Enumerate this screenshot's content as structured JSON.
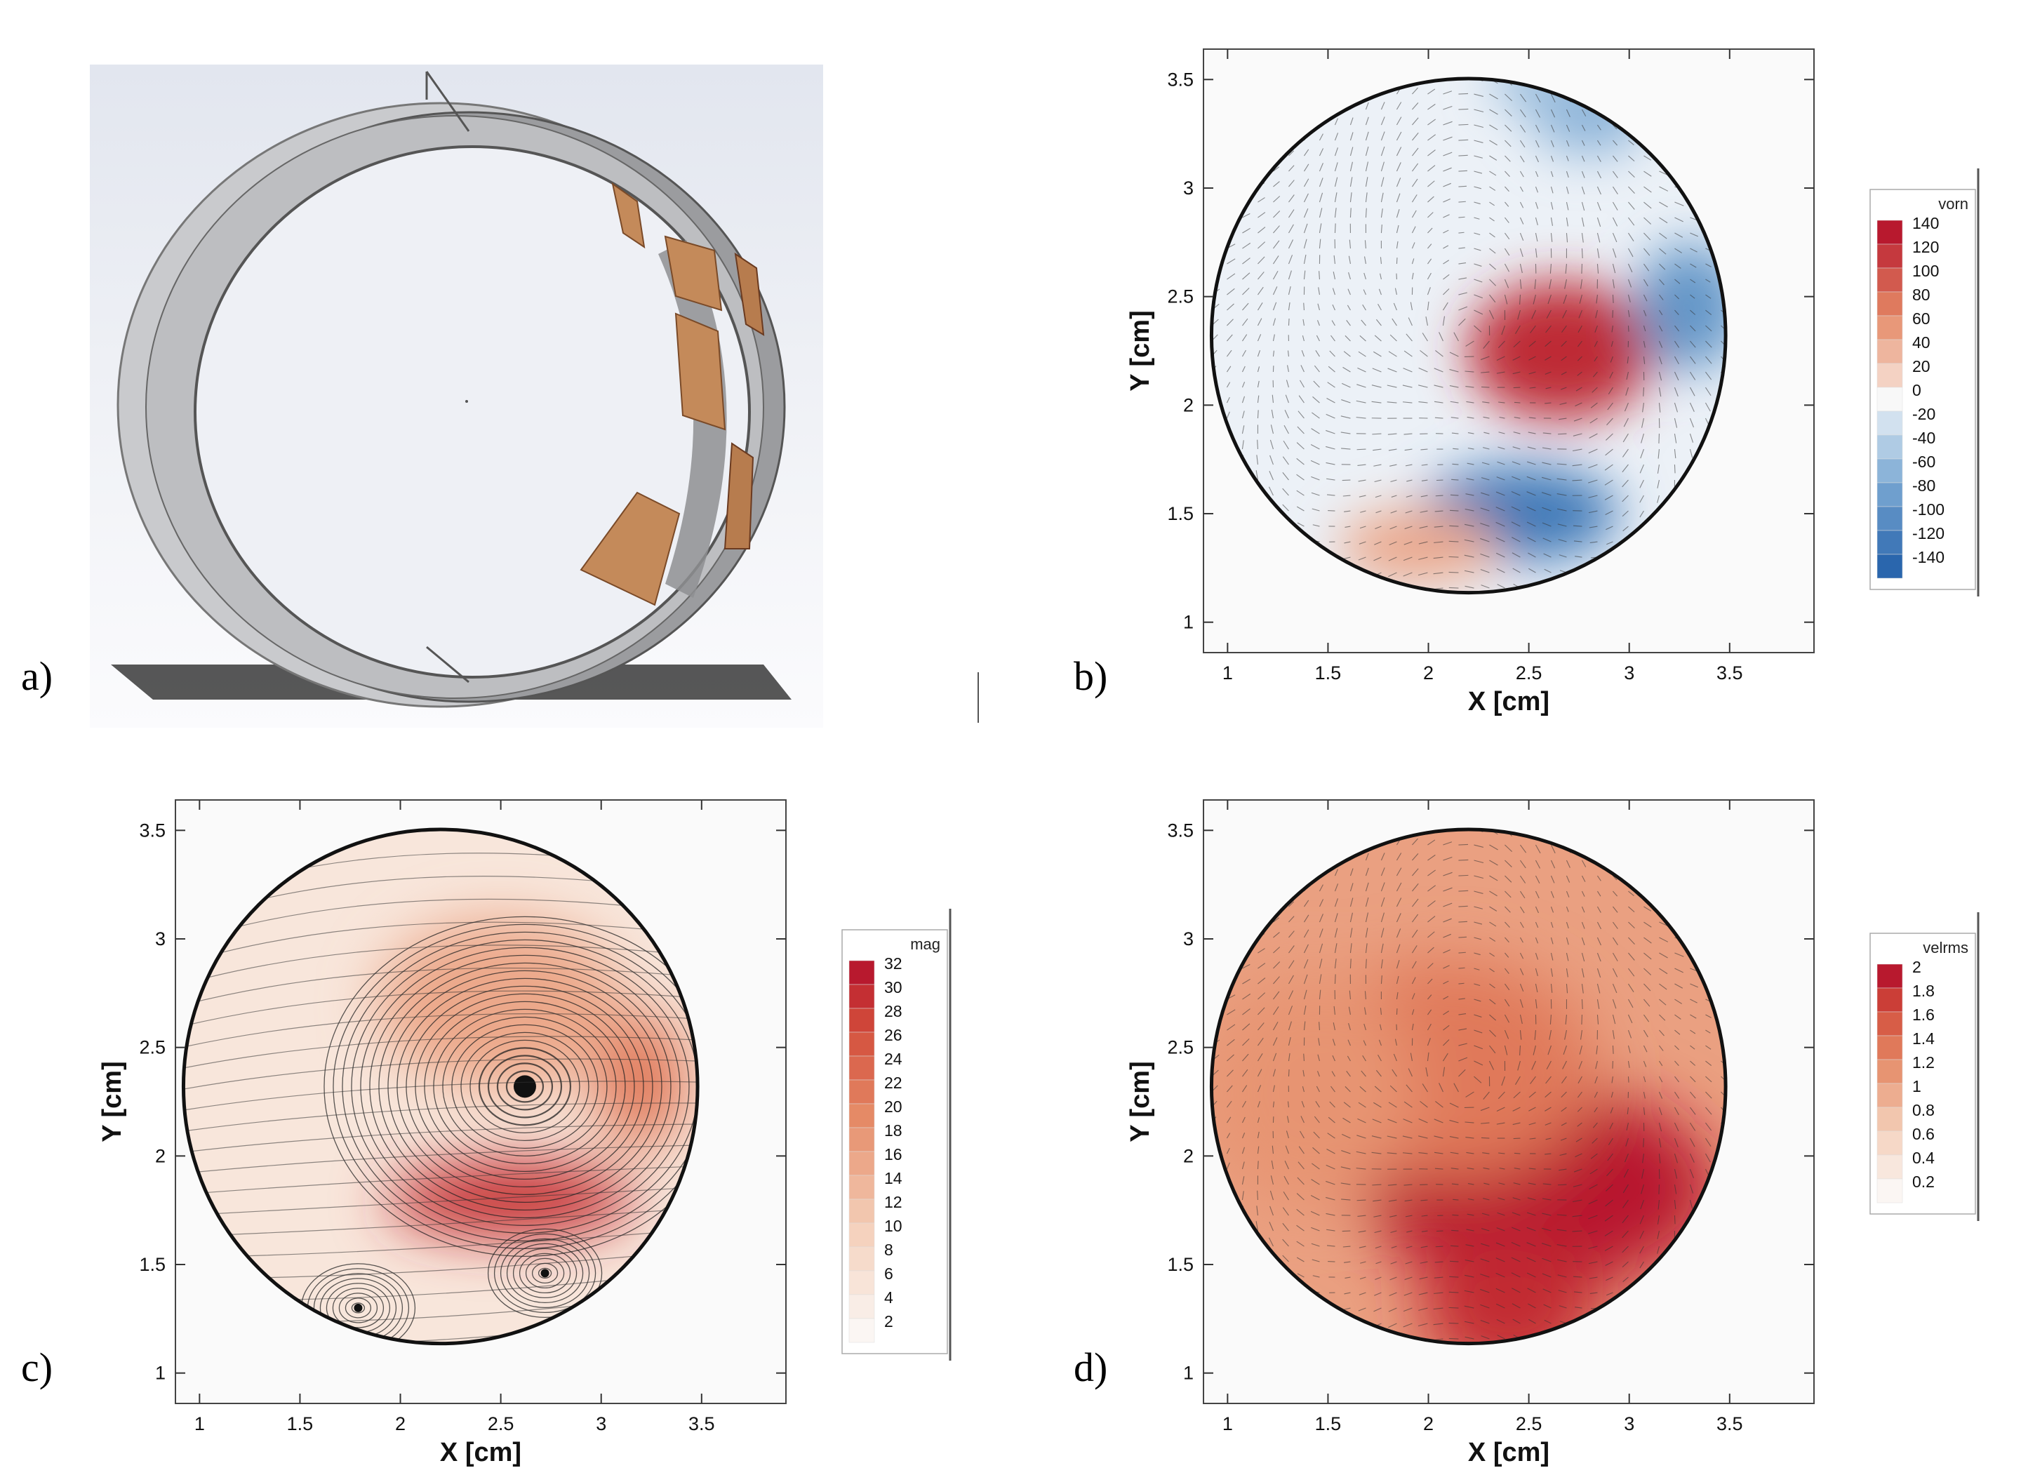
{
  "figure": {
    "labels": [
      "a)",
      "b)",
      "c)",
      "d)"
    ],
    "ticks_x": [
      "1",
      "1.5",
      "2",
      "2.5",
      "3",
      "3.5"
    ],
    "ticks_y": [
      "1",
      "1.5",
      "2",
      "2.5",
      "3",
      "3.5"
    ],
    "xlabel": "X  [cm]",
    "ylabel": "Y [cm]"
  },
  "chart_data": [
    {
      "panel": "b",
      "type": "heatmap",
      "title": "",
      "xlabel": "X  [cm]",
      "ylabel": "Y [cm]",
      "xlim": [
        0.88,
        3.92
      ],
      "ylim": [
        0.86,
        3.64
      ],
      "domain_circle": {
        "cx": 2.2,
        "cy": 2.32,
        "r": 1.28
      },
      "colorbar": {
        "title": "vorn",
        "levels": [
          140,
          120,
          100,
          80,
          60,
          40,
          20,
          0,
          -20,
          -40,
          -60,
          -80,
          -100,
          -120,
          -140
        ],
        "colormap": "blue-white-red"
      },
      "features": [
        {
          "x": 2.66,
          "y": 2.25,
          "value": 130
        },
        {
          "x": 2.45,
          "y": 1.5,
          "value": -120
        },
        {
          "x": 3.3,
          "y": 2.45,
          "value": -90
        },
        {
          "x": 2.8,
          "y": 3.35,
          "value": -60
        },
        {
          "x": 1.95,
          "y": 1.35,
          "value": 50
        },
        {
          "x": 2.55,
          "y": 3.5,
          "value": -50
        }
      ]
    },
    {
      "panel": "c",
      "type": "heatmap",
      "title": "",
      "xlabel": "X  [cm]",
      "ylabel": "Y [cm]",
      "xlim": [
        0.88,
        3.92
      ],
      "ylim": [
        0.86,
        3.64
      ],
      "domain_circle": {
        "cx": 2.2,
        "cy": 2.32,
        "r": 1.28
      },
      "colorbar": {
        "title": "mag",
        "levels": [
          32,
          30,
          28,
          26,
          24,
          22,
          20,
          18,
          16,
          14,
          12,
          10,
          8,
          6,
          4,
          2
        ],
        "colormap": "white-red"
      },
      "overlay": "streamlines",
      "vortex_centers": [
        {
          "x": 2.62,
          "y": 2.32
        },
        {
          "x": 2.72,
          "y": 1.46
        },
        {
          "x": 1.79,
          "y": 1.3
        }
      ],
      "features": [
        {
          "x": 2.55,
          "y": 1.8,
          "value": 30
        },
        {
          "x": 3.2,
          "y": 2.35,
          "value": 22
        },
        {
          "x": 2.5,
          "y": 2.7,
          "value": 16
        }
      ]
    },
    {
      "panel": "d",
      "type": "heatmap",
      "title": "",
      "xlabel": "X  [cm]",
      "ylabel": "Y [cm]",
      "xlim": [
        0.88,
        3.92
      ],
      "ylim": [
        0.86,
        3.64
      ],
      "domain_circle": {
        "cx": 2.2,
        "cy": 2.32,
        "r": 1.28
      },
      "colorbar": {
        "title": "velrms",
        "levels": [
          2,
          1.8,
          1.6,
          1.4,
          1.2,
          1,
          0.8,
          0.6,
          0.4,
          0.2
        ],
        "colormap": "white-red"
      },
      "features": [
        {
          "x": 2.55,
          "y": 1.85,
          "value": 2.0
        },
        {
          "x": 2.4,
          "y": 1.3,
          "value": 1.9
        },
        {
          "x": 2.1,
          "y": 2.4,
          "value": 1.4
        },
        {
          "x": 1.4,
          "y": 2.3,
          "value": 1.2
        }
      ]
    }
  ]
}
